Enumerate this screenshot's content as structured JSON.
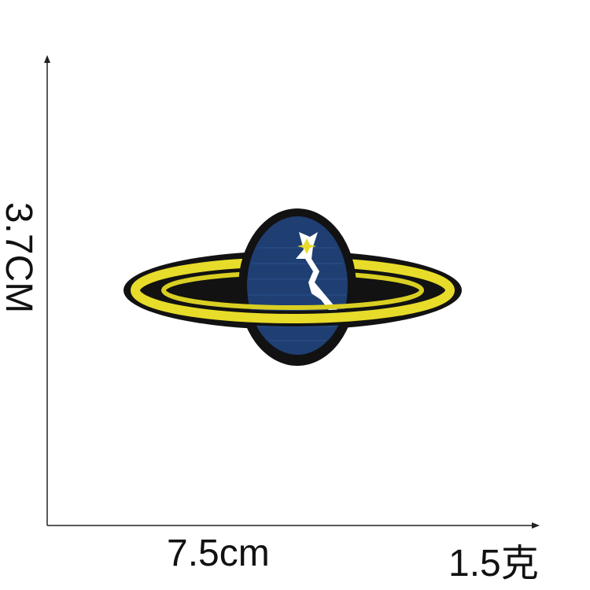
{
  "dimensions": {
    "height_label": "3.7CM",
    "width_label": "7.5cm",
    "weight_label": "1.5克"
  },
  "product": {
    "name": "planet-patch",
    "colors": {
      "outline": "#121212",
      "planet": "#1f3f73",
      "ring": "#e7dc2a",
      "highlight": "#ffffff"
    }
  }
}
